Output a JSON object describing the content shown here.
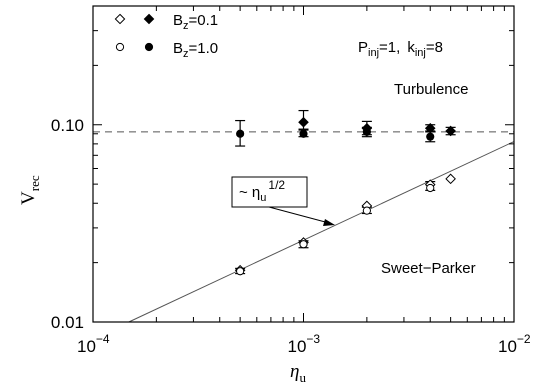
{
  "chart_data": {
    "type": "scatter",
    "title": "",
    "x_scale": "log",
    "y_scale": "log",
    "xlim": [
      0.0001,
      0.01
    ],
    "ylim": [
      0.01,
      0.4
    ],
    "xlabel": {
      "base": "η",
      "sub": "u"
    },
    "ylabel": {
      "base": "V",
      "sub": "rec"
    },
    "x_ticks": [
      {
        "value": 0.0001,
        "base": "10",
        "exp": "−4"
      },
      {
        "value": 0.001,
        "base": "10",
        "exp": "−3"
      },
      {
        "value": 0.01,
        "base": "10",
        "exp": "−2"
      }
    ],
    "y_ticks": [
      {
        "value": 0.01,
        "label": "0.01"
      },
      {
        "value": 0.1,
        "label": "0.10"
      }
    ],
    "legend": {
      "position": "top-left",
      "entries": [
        {
          "markers": [
            "open-diamond",
            "filled-diamond"
          ],
          "base": "B",
          "sub": "z",
          "rest": "=0.1"
        },
        {
          "markers": [
            "open-circle",
            "filled-circle"
          ],
          "base": "B",
          "sub": "z",
          "rest": "=1.0"
        }
      ]
    },
    "params_label": {
      "p": "P",
      "p_sub": "inj",
      "p_val": "=1,",
      "k": "k",
      "k_sub": "inj",
      "k_val": "=8"
    },
    "region_labels": {
      "turbulence": "Turbulence",
      "sweet_parker": "Sweet−Parker"
    },
    "fit_label": {
      "prefix": "~ η",
      "sub": "u",
      "sup": "1/2"
    },
    "reference_lines": [
      {
        "kind": "horizontal",
        "style": "dashed",
        "y": 0.092
      },
      {
        "kind": "power_law",
        "style": "solid",
        "slope": 0.5,
        "through": {
          "x": 0.001,
          "y": 0.026
        }
      }
    ],
    "series": [
      {
        "name": "Bz=0.1 Turbulence",
        "marker": "filled-diamond",
        "points": [
          {
            "x": 0.001,
            "y": 0.103,
            "err": [
              0.095,
              0.118
            ]
          },
          {
            "x": 0.002,
            "y": 0.096,
            "err": [
              0.089,
              0.104
            ]
          },
          {
            "x": 0.004,
            "y": 0.096,
            "err": [
              0.092,
              0.1
            ]
          },
          {
            "x": 0.005,
            "y": 0.093,
            "err": [
              0.089,
              0.097
            ]
          }
        ]
      },
      {
        "name": "Bz=1.0 Turbulence",
        "marker": "filled-circle",
        "points": [
          {
            "x": 0.0005,
            "y": 0.09,
            "err": [
              0.078,
              0.105
            ]
          },
          {
            "x": 0.001,
            "y": 0.09,
            "err": [
              0.087,
              0.094
            ]
          },
          {
            "x": 0.002,
            "y": 0.092,
            "err": [
              0.087,
              0.097
            ]
          },
          {
            "x": 0.004,
            "y": 0.087,
            "err": [
              0.082,
              0.093
            ]
          }
        ]
      },
      {
        "name": "Bz=0.1 Sweet-Parker",
        "marker": "open-diamond",
        "points": [
          {
            "x": 0.0005,
            "y": 0.0183
          },
          {
            "x": 0.001,
            "y": 0.0253
          },
          {
            "x": 0.002,
            "y": 0.0388
          },
          {
            "x": 0.004,
            "y": 0.0497
          },
          {
            "x": 0.005,
            "y": 0.0532
          }
        ]
      },
      {
        "name": "Bz=1.0 Sweet-Parker",
        "marker": "open-circle",
        "points": [
          {
            "x": 0.0005,
            "y": 0.0181,
            "err": [
              0.0176,
              0.0187
            ]
          },
          {
            "x": 0.001,
            "y": 0.0248,
            "err": [
              0.0238,
              0.0258
            ]
          },
          {
            "x": 0.002,
            "y": 0.0367,
            "err": [
              0.0355,
              0.0382
            ]
          },
          {
            "x": 0.004,
            "y": 0.0478,
            "err": [
              0.0465,
              0.0515
            ]
          }
        ]
      }
    ]
  }
}
